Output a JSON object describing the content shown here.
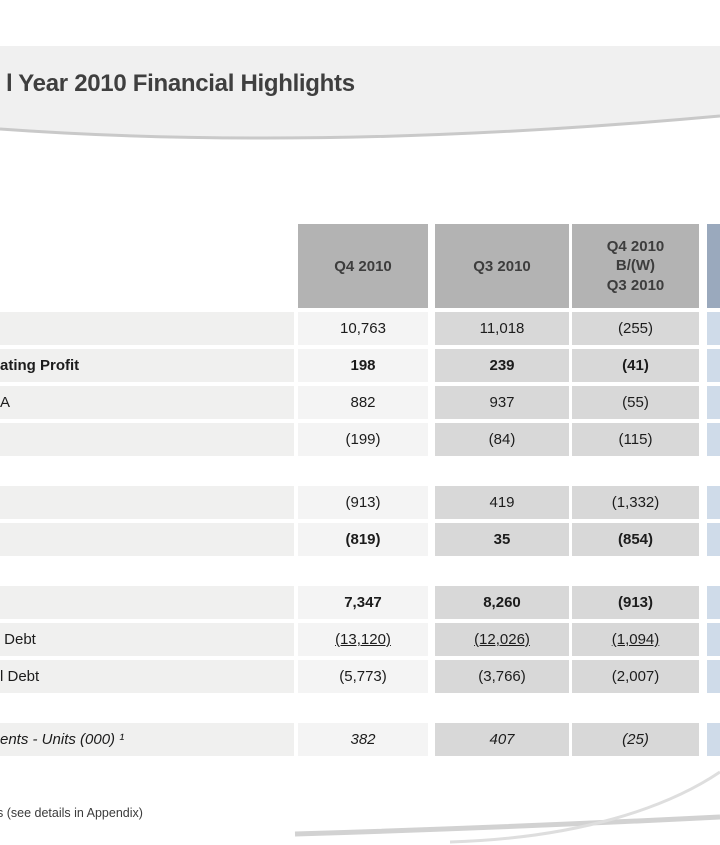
{
  "slide": {
    "title": "l Year 2010 Financial Highlights",
    "footnote": "s (see details in Appendix)"
  },
  "table": {
    "header": {
      "q4": "Q4 2010",
      "q3": "Q3 2010",
      "bw": "Q4 2010\nB/(W)\nQ3 2010",
      "col4": ""
    },
    "rows": [
      {
        "label": "",
        "q4": "10,763",
        "q3": "11,018",
        "bw": "(255)",
        "style": "regular",
        "gap_after": false
      },
      {
        "label": "ating Profit",
        "q4": "198",
        "q3": "239",
        "bw": "(41)",
        "style": "bold",
        "gap_after": false
      },
      {
        "label": "A",
        "q4": "882",
        "q3": "937",
        "bw": "(55)",
        "style": "regular",
        "gap_after": false
      },
      {
        "label": "",
        "q4": "(199)",
        "q3": "(84)",
        "bw": "(115)",
        "style": "regular",
        "gap_after": true
      },
      {
        "label": "",
        "q4": "(913)",
        "q3": "419",
        "bw": "(1,332)",
        "style": "regular",
        "gap_after": false
      },
      {
        "label": "",
        "q4": "(819)",
        "q3": "35",
        "bw": "(854)",
        "style": "bold",
        "gap_after": true
      },
      {
        "label": "",
        "q4": "7,347",
        "q3": "8,260",
        "bw": "(913)",
        "style": "bold",
        "gap_after": false
      },
      {
        "label": " Debt",
        "q4": "(13,120)",
        "q3": "(12,026)",
        "bw": "(1,094)",
        "style": "underline",
        "gap_after": false
      },
      {
        "label": "l Debt",
        "q4": "(5,773)",
        "q3": "(3,766)",
        "bw": "(2,007)",
        "style": "regular",
        "gap_after": true
      },
      {
        "label": "ents - Units (000) ¹",
        "q4": "382",
        "q3": "407",
        "bw": "(25)",
        "style": "italic",
        "gap_after": false
      }
    ]
  },
  "colors": {
    "header_bg": "#b3b3b3",
    "header_col4_bg": "#9aa9bd",
    "label_bg": "#f0f0ef",
    "q4_bg": "#f4f4f4",
    "data_bg": "#d8d8d8",
    "col4_bg": "#cfdbe9",
    "band_bg": "#f0f0f0",
    "curve": "#c9c9c9",
    "title_color": "#3f3f3f",
    "text_color": "#1c1c1c"
  }
}
